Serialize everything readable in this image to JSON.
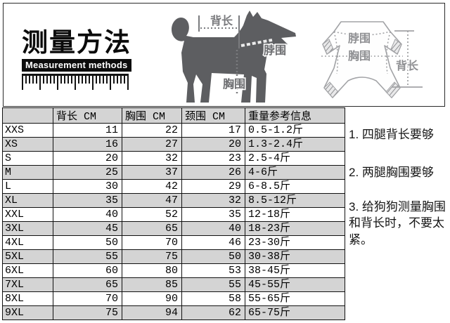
{
  "header": {
    "title_cn": "测量方法",
    "title_en": "Measurement methods"
  },
  "dog_diagram": {
    "back_length_label": "背长",
    "neck_label": "脖围",
    "chest_label": "胸围"
  },
  "garment_diagram": {
    "neck_label": "脖围",
    "chest_label": "胸围",
    "back_length_label": "背长"
  },
  "size_table": {
    "headers": [
      "",
      "背长 CM",
      "胸围 CM",
      "颈围 CM",
      "重量参考信息"
    ],
    "rows": [
      [
        "XXS",
        "11",
        "22",
        "17",
        "0.5-1.2斤"
      ],
      [
        "XS",
        "16",
        "27",
        "20",
        "1.3-2.4斤"
      ],
      [
        "S",
        "20",
        "32",
        "23",
        "2.5-4斤"
      ],
      [
        "M",
        "25",
        "37",
        "26",
        "4-6斤"
      ],
      [
        "L",
        "30",
        "42",
        "29",
        "6-8.5斤"
      ],
      [
        "XL",
        "35",
        "47",
        "32",
        "8.5-12斤"
      ],
      [
        "XXL",
        "40",
        "52",
        "35",
        "12-18斤"
      ],
      [
        "3XL",
        "45",
        "65",
        "40",
        "18-23斤"
      ],
      [
        "4XL",
        "50",
        "70",
        "46",
        "23-30斤"
      ],
      [
        "5XL",
        "55",
        "75",
        "50",
        "30-38斤"
      ],
      [
        "6XL",
        "60",
        "80",
        "53",
        "38-45斤"
      ],
      [
        "7XL",
        "65",
        "85",
        "55",
        "45-55斤"
      ],
      [
        "8XL",
        "70",
        "90",
        "58",
        "55-65斤"
      ],
      [
        "9XL",
        "75",
        "94",
        "62",
        "65-75斤"
      ]
    ]
  },
  "notes": {
    "items": [
      "1. 四腿背长要够",
      "2. 两腿胸围要够",
      "3. 给狗狗测量胸围和背长时，不要太紧。"
    ]
  },
  "colors": {
    "stripe": "#d4d4d4",
    "dog_fill": "#5d5e61",
    "garment_outline": "#a2a3a6",
    "annotation_gray": "#7a7b7e",
    "title_bar": "#0c0c0c",
    "table_border": "#111111"
  }
}
